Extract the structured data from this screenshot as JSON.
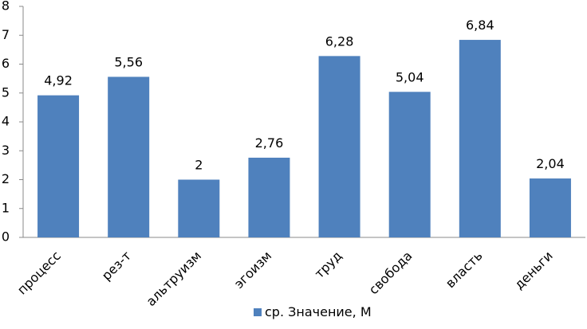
{
  "chart_data": {
    "type": "bar",
    "categories": [
      "процесс",
      "рез-т",
      "альтруизм",
      "эгоизм",
      "труд",
      "свобода",
      "власть",
      "деньги"
    ],
    "series": [
      {
        "name": "ср. Значение, М",
        "values": [
          4.92,
          5.56,
          2,
          2.76,
          6.28,
          5.04,
          6.84,
          2.04
        ],
        "data_labels": [
          "4,92",
          "5,56",
          "2",
          "2,76",
          "6,28",
          "5,04",
          "6,84",
          "2,04"
        ],
        "color": "#4F81BD"
      }
    ],
    "y_ticks": [
      "0",
      "1",
      "2",
      "3",
      "4",
      "5",
      "6",
      "7",
      "8"
    ],
    "ylim": [
      0,
      8
    ],
    "grid": false,
    "legend_position": "bottom",
    "title": "",
    "xlabel": "",
    "ylabel": ""
  }
}
